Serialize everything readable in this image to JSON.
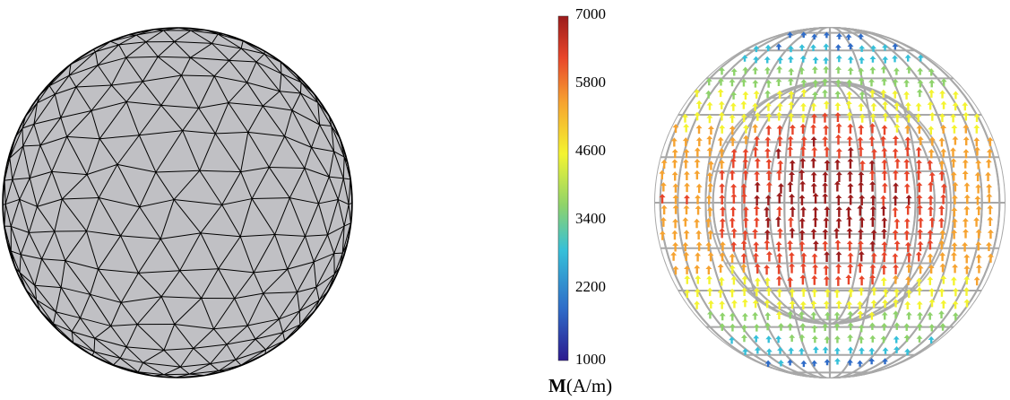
{
  "colorbar": {
    "ticks": [
      "7000",
      "5800",
      "4600",
      "3400",
      "2200",
      "1000"
    ],
    "min": 1000,
    "max": 7000,
    "label_symbol": "M",
    "label_unit": "(A/m)",
    "colors": [
      "#2c1a8f",
      "#2f6cc8",
      "#36c0d9",
      "#8ed36b",
      "#f4f431",
      "#f6a331",
      "#e8452a",
      "#9b1c1c"
    ]
  },
  "mesh": {
    "fill": "#c0c0c4",
    "edge": "#000000"
  },
  "vector_plot": {
    "wire": "#a8a8a8"
  }
}
